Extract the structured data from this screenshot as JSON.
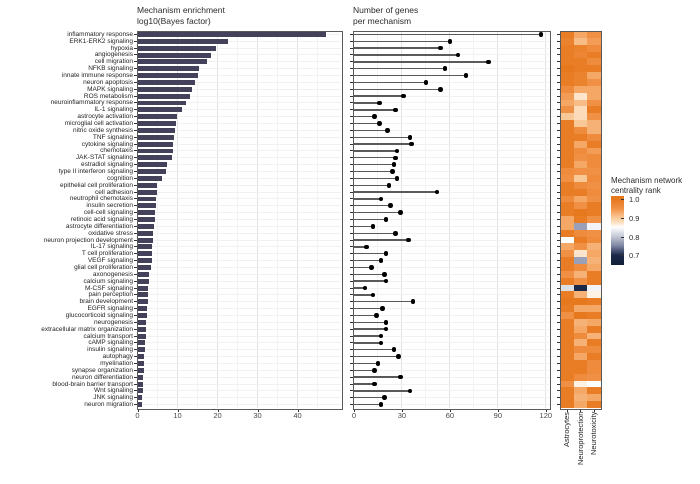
{
  "chart_data": {
    "type": "composite",
    "rows": [
      "inflammatory response",
      "ERK1-ERK2 signaling",
      "hypoxia",
      "angiogenesis",
      "cell migration",
      "NFKB signaling",
      "innate immune response",
      "neuron apoptosis",
      "MAPK signaling",
      "ROS metabolism",
      "neuroinflammatory response",
      "IL-1 signaling",
      "astrocyte activation",
      "microglial cell activation",
      "nitric oxide synthesis",
      "TNF signaling",
      "cytokine signaling",
      "chemotaxis",
      "JAK-STAT signaling",
      "estradiol signaling",
      "type II interferon signaling",
      "cognition",
      "epithelial cell proliferation",
      "cell adhesion",
      "neutrophil chemotaxis",
      "insulin secretion",
      "cell-cell signaling",
      "retinoic acid signaling",
      "astrocyte differentiation",
      "oxidative stress",
      "neuron projection development",
      "IL-17 signaling",
      "T cell proliferation",
      "VEGF signaling",
      "glial cell proliferation",
      "axonogenesis",
      "calcium signaling",
      "M-CSF signaling",
      "pain perception",
      "brain development",
      "EGFR signaling",
      "glucocorticoid signaling",
      "neurogenesis",
      "extracellular matrix organization",
      "calcium transport",
      "cAMP signaling",
      "insulin signaling",
      "autophagy",
      "myelination",
      "synapse organization",
      "neuron differentiation",
      "blood-brain barrier transport",
      "Wnt signaling",
      "JNK signaling",
      "neuron migration"
    ],
    "panels": [
      {
        "type": "bar",
        "title_lines": [
          "Mechanism enrichment",
          "log10(Bayes factor)"
        ],
        "xlim": [
          0,
          51
        ],
        "xticks": [
          0,
          10,
          20,
          30,
          40
        ],
        "bar_color": "#44415A",
        "values": [
          47,
          22.5,
          19.5,
          18.3,
          17.3,
          15.4,
          15.0,
          14.4,
          13.7,
          13.1,
          12.0,
          11.2,
          9.9,
          9.5,
          9.3,
          9.0,
          8.9,
          8.8,
          8.7,
          7.4,
          7.2,
          6.2,
          4.9,
          4.8,
          4.7,
          4.6,
          4.4,
          4.3,
          4.2,
          3.9,
          3.8,
          3.7,
          3.6,
          3.5,
          3.4,
          2.9,
          2.8,
          2.7,
          2.6,
          2.5,
          2.4,
          2.3,
          2.2,
          2.1,
          2.0,
          1.9,
          1.8,
          1.7,
          1.6,
          1.5,
          1.4,
          1.3,
          1.25,
          1.2,
          1.1
        ]
      },
      {
        "type": "lollipop",
        "title_lines": [
          "Number of genes",
          "per mechanism"
        ],
        "xlim": [
          0,
          122
        ],
        "xticks": [
          0,
          30,
          60,
          90,
          120
        ],
        "values": [
          117,
          60,
          54,
          65,
          84,
          57,
          70,
          45,
          54,
          31,
          16,
          26,
          13,
          16,
          21,
          35,
          36,
          27,
          26,
          25,
          24,
          27,
          22,
          52,
          17,
          23,
          29,
          20,
          12,
          26,
          34,
          8,
          20,
          17,
          11,
          19,
          20,
          7,
          12,
          37,
          18,
          14,
          20,
          20,
          17,
          17,
          25,
          28,
          15,
          13,
          29,
          13,
          35,
          19,
          17
        ]
      },
      {
        "type": "heatmap",
        "columns": [
          "Astrocytes",
          "Neuroprotection",
          "Neurotoxicity"
        ],
        "values": [
          [
            0.99,
            0.93,
            0.95
          ],
          [
            0.98,
            0.91,
            0.94
          ],
          [
            0.99,
            0.98,
            0.96
          ],
          [
            0.99,
            0.97,
            0.99
          ],
          [
            0.99,
            0.99,
            0.96
          ],
          [
            1.0,
            0.99,
            0.99
          ],
          [
            0.99,
            0.98,
            0.93
          ],
          [
            0.99,
            0.98,
            0.95
          ],
          [
            0.96,
            0.93,
            0.93
          ],
          [
            0.94,
            0.87,
            0.93
          ],
          [
            0.93,
            0.91,
            0.95
          ],
          [
            0.95,
            0.88,
            0.99
          ],
          [
            0.9,
            0.88,
            0.95
          ],
          [
            0.99,
            0.9,
            0.92
          ],
          [
            0.99,
            0.96,
            0.92
          ],
          [
            0.99,
            0.99,
            0.96
          ],
          [
            0.99,
            0.93,
            0.99
          ],
          [
            0.99,
            0.96,
            0.94
          ],
          [
            0.99,
            0.95,
            0.96
          ],
          [
            0.99,
            0.93,
            0.96
          ],
          [
            0.96,
            0.95,
            0.95
          ],
          [
            0.95,
            0.9,
            0.96
          ],
          [
            0.99,
            0.96,
            0.95
          ],
          [
            0.99,
            0.99,
            0.96
          ],
          [
            0.96,
            0.93,
            0.95
          ],
          [
            0.99,
            0.95,
            0.99
          ],
          [
            0.99,
            1.0,
            0.99
          ],
          [
            0.93,
            0.99,
            0.95
          ],
          [
            0.93,
            0.77,
            0.84
          ],
          [
            0.99,
            0.96,
            0.95
          ],
          [
            0.85,
            0.99,
            0.96
          ],
          [
            0.93,
            0.95,
            0.92
          ],
          [
            0.95,
            0.87,
            0.93
          ],
          [
            0.99,
            0.77,
            0.92
          ],
          [
            0.99,
            0.96,
            0.93
          ],
          [
            0.95,
            0.92,
            0.99
          ],
          [
            0.99,
            0.95,
            0.99
          ],
          [
            0.82,
            0.7,
            0.84
          ],
          [
            0.99,
            0.92,
            0.86
          ],
          [
            1.0,
            1.0,
            0.99
          ],
          [
            0.99,
            0.93,
            0.93
          ],
          [
            0.95,
            1.0,
            0.99
          ],
          [
            0.99,
            0.92,
            0.93
          ],
          [
            0.99,
            0.93,
            0.99
          ],
          [
            0.99,
            0.96,
            0.92
          ],
          [
            0.99,
            0.92,
            0.99
          ],
          [
            0.99,
            0.96,
            0.96
          ],
          [
            0.99,
            0.93,
            0.99
          ],
          [
            0.99,
            0.99,
            0.96
          ],
          [
            0.99,
            0.99,
            0.96
          ],
          [
            0.99,
            0.96,
            0.95
          ],
          [
            0.95,
            0.86,
            0.85
          ],
          [
            0.99,
            0.93,
            0.99
          ],
          [
            0.99,
            0.92,
            0.93
          ],
          [
            0.99,
            0.93,
            0.99
          ]
        ],
        "colorscale": {
          "title_lines": [
            "Mechanism network",
            "centrality rank"
          ],
          "ticks": [
            "1.0",
            "0.9",
            "0.8",
            "0.7"
          ],
          "stops": [
            {
              "v": 1.0,
              "c": "#E6781E"
            },
            {
              "v": 0.95,
              "c": "#F09045"
            },
            {
              "v": 0.93,
              "c": "#F5A765"
            },
            {
              "v": 0.9,
              "c": "#F9C897"
            },
            {
              "v": 0.87,
              "c": "#FCE5CB"
            },
            {
              "v": 0.85,
              "c": "#FFFFFF"
            },
            {
              "v": 0.8,
              "c": "#C4C9D6"
            },
            {
              "v": 0.75,
              "c": "#7D85A2"
            },
            {
              "v": 0.7,
              "c": "#1B2A4A"
            }
          ]
        }
      }
    ]
  }
}
